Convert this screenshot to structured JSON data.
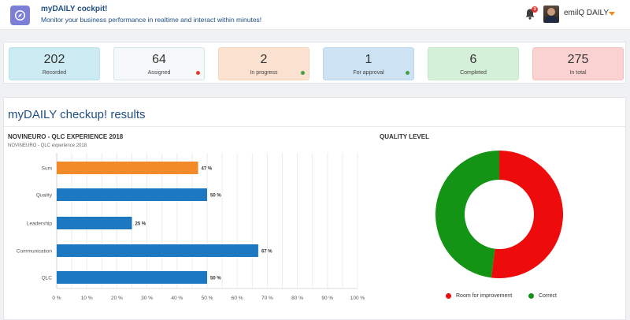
{
  "header": {
    "title": "myDAILY cockpit!",
    "subtitle": "Monitor your business performance in realtime and interact within minutes!",
    "notification_count": "3",
    "user_name": "emilQ DAILY"
  },
  "stats": [
    {
      "value": "202",
      "label": "Recorded",
      "bg": "#cdebf3",
      "border": "#b8e0ec",
      "dot": ""
    },
    {
      "value": "64",
      "label": "Assigned",
      "bg": "#f6f8f9",
      "border": "#cfe6ea",
      "dot": "#e53935"
    },
    {
      "value": "2",
      "label": "In progress",
      "bg": "#fbe1cf",
      "border": "#f7d3b9",
      "dot": "#43a047"
    },
    {
      "value": "1",
      "label": "For approval",
      "bg": "#cde3f3",
      "border": "#b9d7ee",
      "dot": "#43a047"
    },
    {
      "value": "6",
      "label": "Completed",
      "bg": "#d5f0d8",
      "border": "#c3e8c7",
      "dot": ""
    },
    {
      "value": "275",
      "label": "In total",
      "bg": "#fbd2d2",
      "border": "#f7c0c0",
      "dot": ""
    }
  ],
  "panel": {
    "title": "myDAILY checkup! results"
  },
  "chart_data": [
    {
      "type": "bar",
      "orientation": "horizontal",
      "title": "NOVINEURO - QLC EXPERIENCE 2018",
      "subtitle": "NOVINEURO - QLC experience 2018",
      "categories": [
        "Sum",
        "Quality",
        "Leadership",
        "Communication",
        "QLC"
      ],
      "values": [
        47,
        50,
        25,
        67,
        50
      ],
      "value_labels": [
        "47 %",
        "50 %",
        "25 %",
        "67 %",
        "50 %"
      ],
      "bar_colors": [
        "#f28a2a",
        "#1c78c0",
        "#1c78c0",
        "#1c78c0",
        "#1c78c0"
      ],
      "xlim": [
        0,
        100
      ],
      "x_ticks": [
        "0 %",
        "10 %",
        "20 %",
        "30 %",
        "40 %",
        "50 %",
        "60 %",
        "70 %",
        "80 %",
        "90 %",
        "100 %"
      ],
      "grid": true,
      "xlabel": "",
      "ylabel": ""
    },
    {
      "type": "pie",
      "variant": "donut",
      "title": "QUALITY LEVEL",
      "slices": [
        {
          "name": "Room for improvement",
          "value": 52,
          "color": "#ee0b0b"
        },
        {
          "name": "Correct",
          "value": 48,
          "color": "#149414"
        }
      ],
      "legend": "bottom"
    }
  ]
}
